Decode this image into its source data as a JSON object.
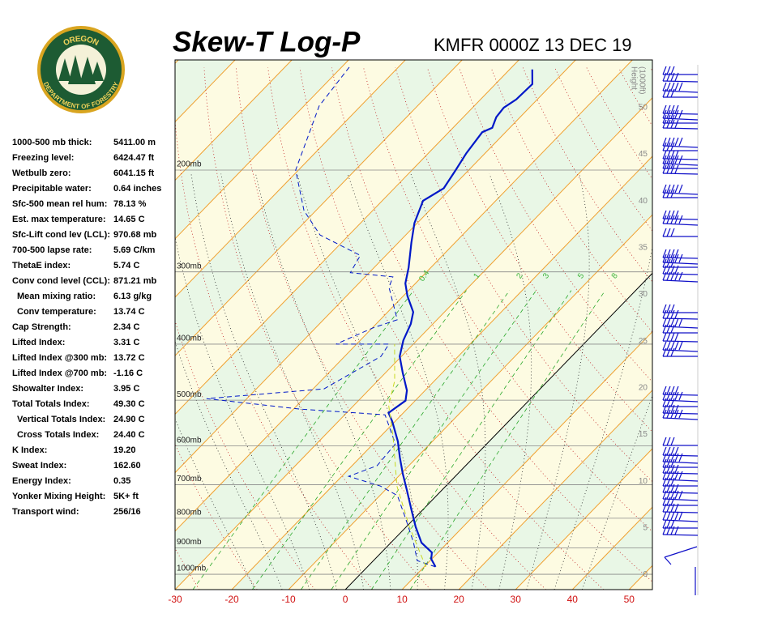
{
  "header": {
    "title": "Skew-T Log-P",
    "station": "KMFR 0000Z 13 DEC 19",
    "logo_top": "OREGON",
    "logo_bottom": "DEPARTMENT OF FORESTRY"
  },
  "indices": {
    "rows": [
      [
        "1000-500 mb thick:",
        "5411.00 m"
      ],
      [
        "Freezing level:",
        "6424.47 ft"
      ],
      [
        "Wetbulb zero:",
        "6041.15 ft"
      ],
      [
        "Precipitable water:",
        "0.64 inches"
      ],
      [
        "Sfc-500 mean rel hum:",
        "78.13 %"
      ],
      [
        "Est. max temperature:",
        "14.65 C"
      ],
      [
        "Sfc-Lift cond lev (LCL):",
        "970.68 mb"
      ],
      [
        "700-500 lapse rate:",
        "5.69 C/km"
      ],
      [
        "ThetaE index:",
        "5.74 C"
      ],
      [
        "Conv cond level (CCL):",
        "871.21 mb"
      ],
      [
        "Mean mixing ratio:",
        "6.13 g/kg"
      ],
      [
        "Conv temperature:",
        "13.74 C"
      ],
      [
        "Cap Strength:",
        "2.34 C"
      ],
      [
        "Lifted Index:",
        "3.31 C"
      ],
      [
        "Lifted Index @300 mb:",
        "13.72 C"
      ],
      [
        "Lifted Index @700 mb:",
        "-1.16 C"
      ],
      [
        "Showalter Index:",
        "3.95 C"
      ],
      [
        "Total Totals Index:",
        "49.30 C"
      ],
      [
        "Vertical Totals Index:",
        "24.90 C"
      ],
      [
        "Cross Totals Index:",
        "24.40 C"
      ],
      [
        "K Index:",
        "19.20"
      ],
      [
        "Sweat Index:",
        "162.60"
      ],
      [
        "Energy Index:",
        "0.35"
      ],
      [
        "Yonker Mixing Height:",
        "5K+ ft"
      ],
      [
        "Transport wind:",
        "256/16"
      ]
    ]
  },
  "chart_data": {
    "type": "skewt",
    "xlim": [
      -30,
      54.1
    ],
    "xticks": [
      -30,
      -20,
      -10,
      0,
      10,
      20,
      30,
      40,
      50
    ],
    "ylim": [
      1063,
      129
    ],
    "ylog": true,
    "yticks": [
      {
        "value": 200,
        "label": "200mb"
      },
      {
        "value": 300,
        "label": "300mb"
      },
      {
        "value": 400,
        "label": "400mb"
      },
      {
        "value": 500,
        "label": "500mb"
      },
      {
        "value": 600,
        "label": "600mb"
      },
      {
        "value": 700,
        "label": "700mb"
      },
      {
        "value": 800,
        "label": "800mb"
      },
      {
        "value": 900,
        "label": "900mb"
      },
      {
        "value": 1000,
        "label": "1000mb"
      }
    ],
    "y2label": [
      "Height",
      "(1000ft)"
    ],
    "y2lim": [
      -1.6,
      55.1
    ],
    "y2ticks": [
      0,
      5,
      10,
      15,
      20,
      25,
      30,
      35,
      40,
      45,
      50
    ],
    "mixing_ratios": [
      0.4,
      1,
      2,
      3,
      5,
      8
    ],
    "series": [
      {
        "color": "#0018c8",
        "dashed": false,
        "width": 2.2,
        "values": [
          971,
          941,
          917,
          882,
          827,
          775,
          715,
          670,
          628,
          589,
          544,
          526,
          501,
          481,
          448,
          420,
          394,
          369,
          352,
          330,
          314,
          295,
          267,
          247,
          226,
          215,
          200,
          187,
          172,
          169,
          162,
          156,
          151,
          142,
          134
        ],
        "x": [
          12.0,
          9.9,
          8.9,
          5.4,
          1.6,
          -1.9,
          -6.2,
          -9.7,
          -13.0,
          -16.1,
          -20.5,
          -22.6,
          -21.7,
          -23.2,
          -27.0,
          -30.3,
          -32.4,
          -33.9,
          -35.5,
          -39.3,
          -41.8,
          -43.9,
          -47.7,
          -50.5,
          -52.8,
          -51.3,
          -52.3,
          -53.3,
          -54.1,
          -53.1,
          -54.2,
          -54.5,
          -53.7,
          -53.5,
          -56.0
        ]
      },
      {
        "color": "#0018c8",
        "dashed": true,
        "width": 1,
        "values": [
          971,
          947,
          882,
          800,
          731,
          704,
          677,
          649,
          595,
          530,
          518,
          497,
          478,
          420,
          400,
          400,
          375,
          363,
          319,
          306,
          301,
          281,
          259,
          235,
          200,
          176,
          155,
          132
        ],
        "x": [
          12.0,
          7.7,
          4.0,
          -1.6,
          -6.9,
          -11.5,
          -18.8,
          -15.6,
          -16.1,
          -22.9,
          -38.9,
          -57.1,
          -38.1,
          -33.6,
          -34.3,
          -43.6,
          -39.9,
          -37.0,
          -44.0,
          -45.1,
          -53.3,
          -54.5,
          -65.1,
          -72.1,
          -80.5,
          -83.9,
          -87.3,
          -88.7
        ]
      },
      {
        "color": "#c8d820",
        "dashed": true,
        "width": 1,
        "values": [
          971,
          827,
          704,
          580,
          510,
          463,
          400
        ],
        "x": [
          10.3,
          0.5,
          -8.6,
          -17.6,
          -23.9,
          -27.0,
          -33.3
        ]
      }
    ]
  }
}
